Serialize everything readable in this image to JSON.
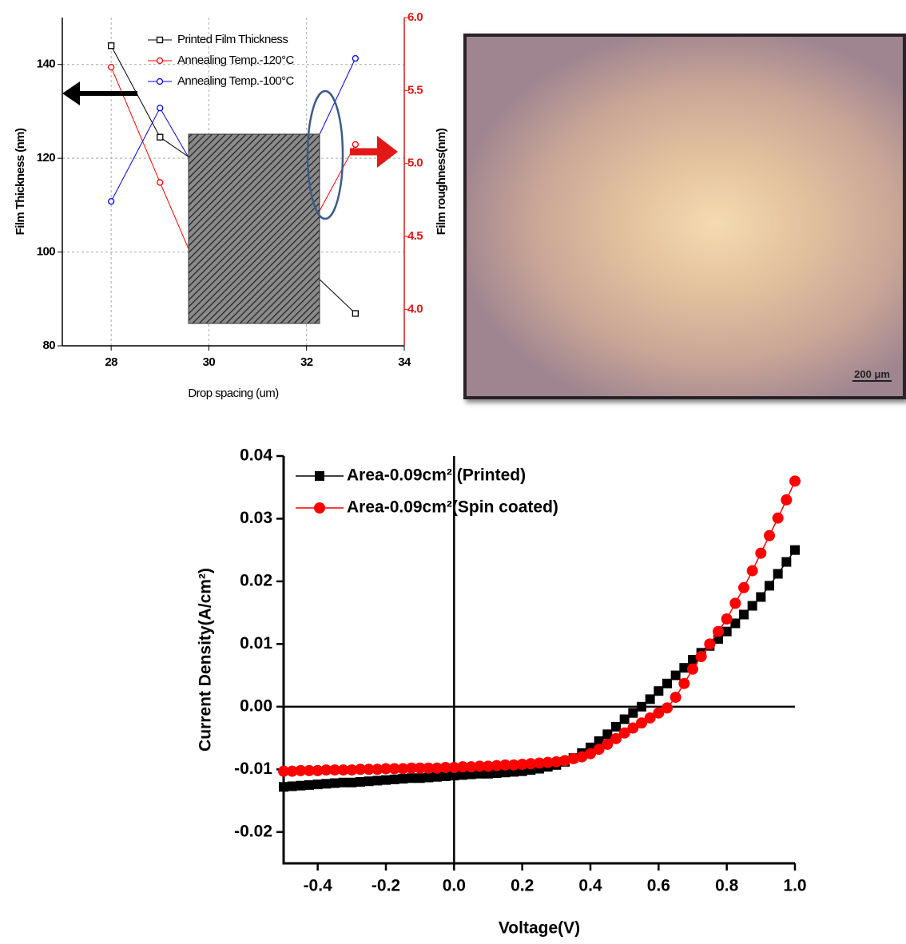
{
  "chart_data": [
    {
      "type": "line",
      "x_label": "Drop spacing (um)",
      "y_label": "Film Thickness (nm)",
      "y2_label": "Film roughness(nm)",
      "x": [
        28,
        29,
        30,
        31,
        32,
        33
      ],
      "xlim": [
        27,
        34
      ],
      "xticks": [
        28,
        30,
        32,
        34
      ],
      "ylim": [
        80,
        150
      ],
      "yticks": [
        80,
        100,
        120,
        140
      ],
      "y2lim": [
        3.75,
        6.0
      ],
      "y2ticks": [
        {
          "value": 4,
          "label": "4.0"
        },
        4.5,
        {
          "value": 5,
          "label": "5.0"
        },
        5.5,
        {
          "value": 6,
          "label": "6.0"
        }
      ],
      "grid": true,
      "series": [
        {
          "name": "Printed Film Thickness",
          "color": "#000000",
          "marker": "square",
          "values": [
            144,
            124.5,
            117.3,
            110.7,
            96.8,
            86.9
          ]
        },
        {
          "name": "Annealing Temp.-120°C",
          "color": "#ff0000",
          "marker": "circle",
          "axis": "y2",
          "values": [
            5.66,
            4.87,
            4.09,
            4.22,
            4.51,
            5.13
          ]
        },
        {
          "name": "Annealing Temp.-100°C",
          "color": "#0000ff",
          "marker": "circle",
          "axis": "y2",
          "values": [
            4.74,
            5.38,
            4.8,
            4.62,
            5.01,
            5.72
          ]
        }
      ]
    },
    {
      "type": "scatter",
      "x_label": "Voltage(V)",
      "y_label": "Current Density(A/cm²)",
      "xlim": [
        -0.5,
        1.0
      ],
      "xticks": [
        -0.4,
        -0.2,
        {
          "value": 0,
          "label": "0.0"
        },
        0.2,
        0.4,
        0.6,
        0.8,
        {
          "value": 1,
          "label": "1.0"
        }
      ],
      "ylim": [
        -0.025,
        0.04
      ],
      "yticks": [
        -0.02,
        -0.01,
        {
          "value": 0,
          "label": "0.00"
        },
        0.01,
        0.02,
        0.03,
        0.04
      ],
      "x": [
        -0.5,
        -0.475,
        -0.45,
        -0.425,
        -0.4,
        -0.375,
        -0.35,
        -0.325,
        -0.3,
        -0.275,
        -0.25,
        -0.225,
        -0.2,
        -0.175,
        -0.15,
        -0.125,
        -0.1,
        -0.075,
        -0.05,
        -0.025,
        0,
        0.025,
        0.05,
        0.075,
        0.1,
        0.125,
        0.15,
        0.175,
        0.2,
        0.225,
        0.25,
        0.275,
        0.3,
        0.325,
        0.35,
        0.375,
        0.4,
        0.425,
        0.45,
        0.475,
        0.5,
        0.525,
        0.55,
        0.575,
        0.6,
        0.625,
        0.65,
        0.675,
        0.7,
        0.725,
        0.75,
        0.775,
        0.8,
        0.825,
        0.85,
        0.875,
        0.9,
        0.925,
        0.95,
        0.975,
        1.0
      ],
      "series": [
        {
          "name": "Area-0.09cm² (Printed)",
          "color": "#000000",
          "marker": "square",
          "values": [
            -0.0128,
            -0.0127,
            -0.0126,
            -0.0125,
            -0.0124,
            -0.0123,
            -0.0122,
            -0.0121,
            -0.0121,
            -0.012,
            -0.0119,
            -0.0118,
            -0.0117,
            -0.0116,
            -0.0115,
            -0.0114,
            -0.0114,
            -0.0113,
            -0.0112,
            -0.0111,
            -0.011,
            -0.0109,
            -0.0108,
            -0.0107,
            -0.0107,
            -0.0106,
            -0.0105,
            -0.0104,
            -0.0103,
            -0.0101,
            -0.0099,
            -0.0096,
            -0.0093,
            -0.0088,
            -0.0082,
            -0.0074,
            -0.0065,
            -0.0055,
            -0.0044,
            -0.0032,
            -0.002,
            -0.001,
            0.0,
            0.0012,
            0.0025,
            0.0037,
            0.005,
            0.0062,
            0.0075,
            0.0086,
            0.0097,
            0.0108,
            0.012,
            0.0133,
            0.0147,
            0.0161,
            0.0175,
            0.0193,
            0.0212,
            0.0231,
            0.025
          ]
        },
        {
          "name": "Area-0.09cm²(Spin coated)",
          "color": "#ff0000",
          "marker": "circle",
          "values": [
            -0.0103,
            -0.0103,
            -0.0102,
            -0.0102,
            -0.0102,
            -0.0101,
            -0.0101,
            -0.0101,
            -0.0101,
            -0.01,
            -0.01,
            -0.01,
            -0.0099,
            -0.0099,
            -0.0099,
            -0.0098,
            -0.0098,
            -0.0098,
            -0.0098,
            -0.0097,
            -0.0097,
            -0.0096,
            -0.0096,
            -0.0095,
            -0.0095,
            -0.0094,
            -0.0093,
            -0.0093,
            -0.0092,
            -0.0091,
            -0.009,
            -0.0089,
            -0.0088,
            -0.0086,
            -0.0083,
            -0.008,
            -0.0075,
            -0.0068,
            -0.006,
            -0.0051,
            -0.0042,
            -0.0034,
            -0.0026,
            -0.0018,
            -0.001,
            -0.0002,
            0.0015,
            0.0037,
            0.006,
            0.008,
            0.01,
            0.012,
            0.014,
            0.0165,
            0.019,
            0.0217,
            0.0245,
            0.0273,
            0.0301,
            0.033,
            0.036
          ]
        }
      ]
    }
  ],
  "image": {
    "scale_bar": "200 μm"
  }
}
